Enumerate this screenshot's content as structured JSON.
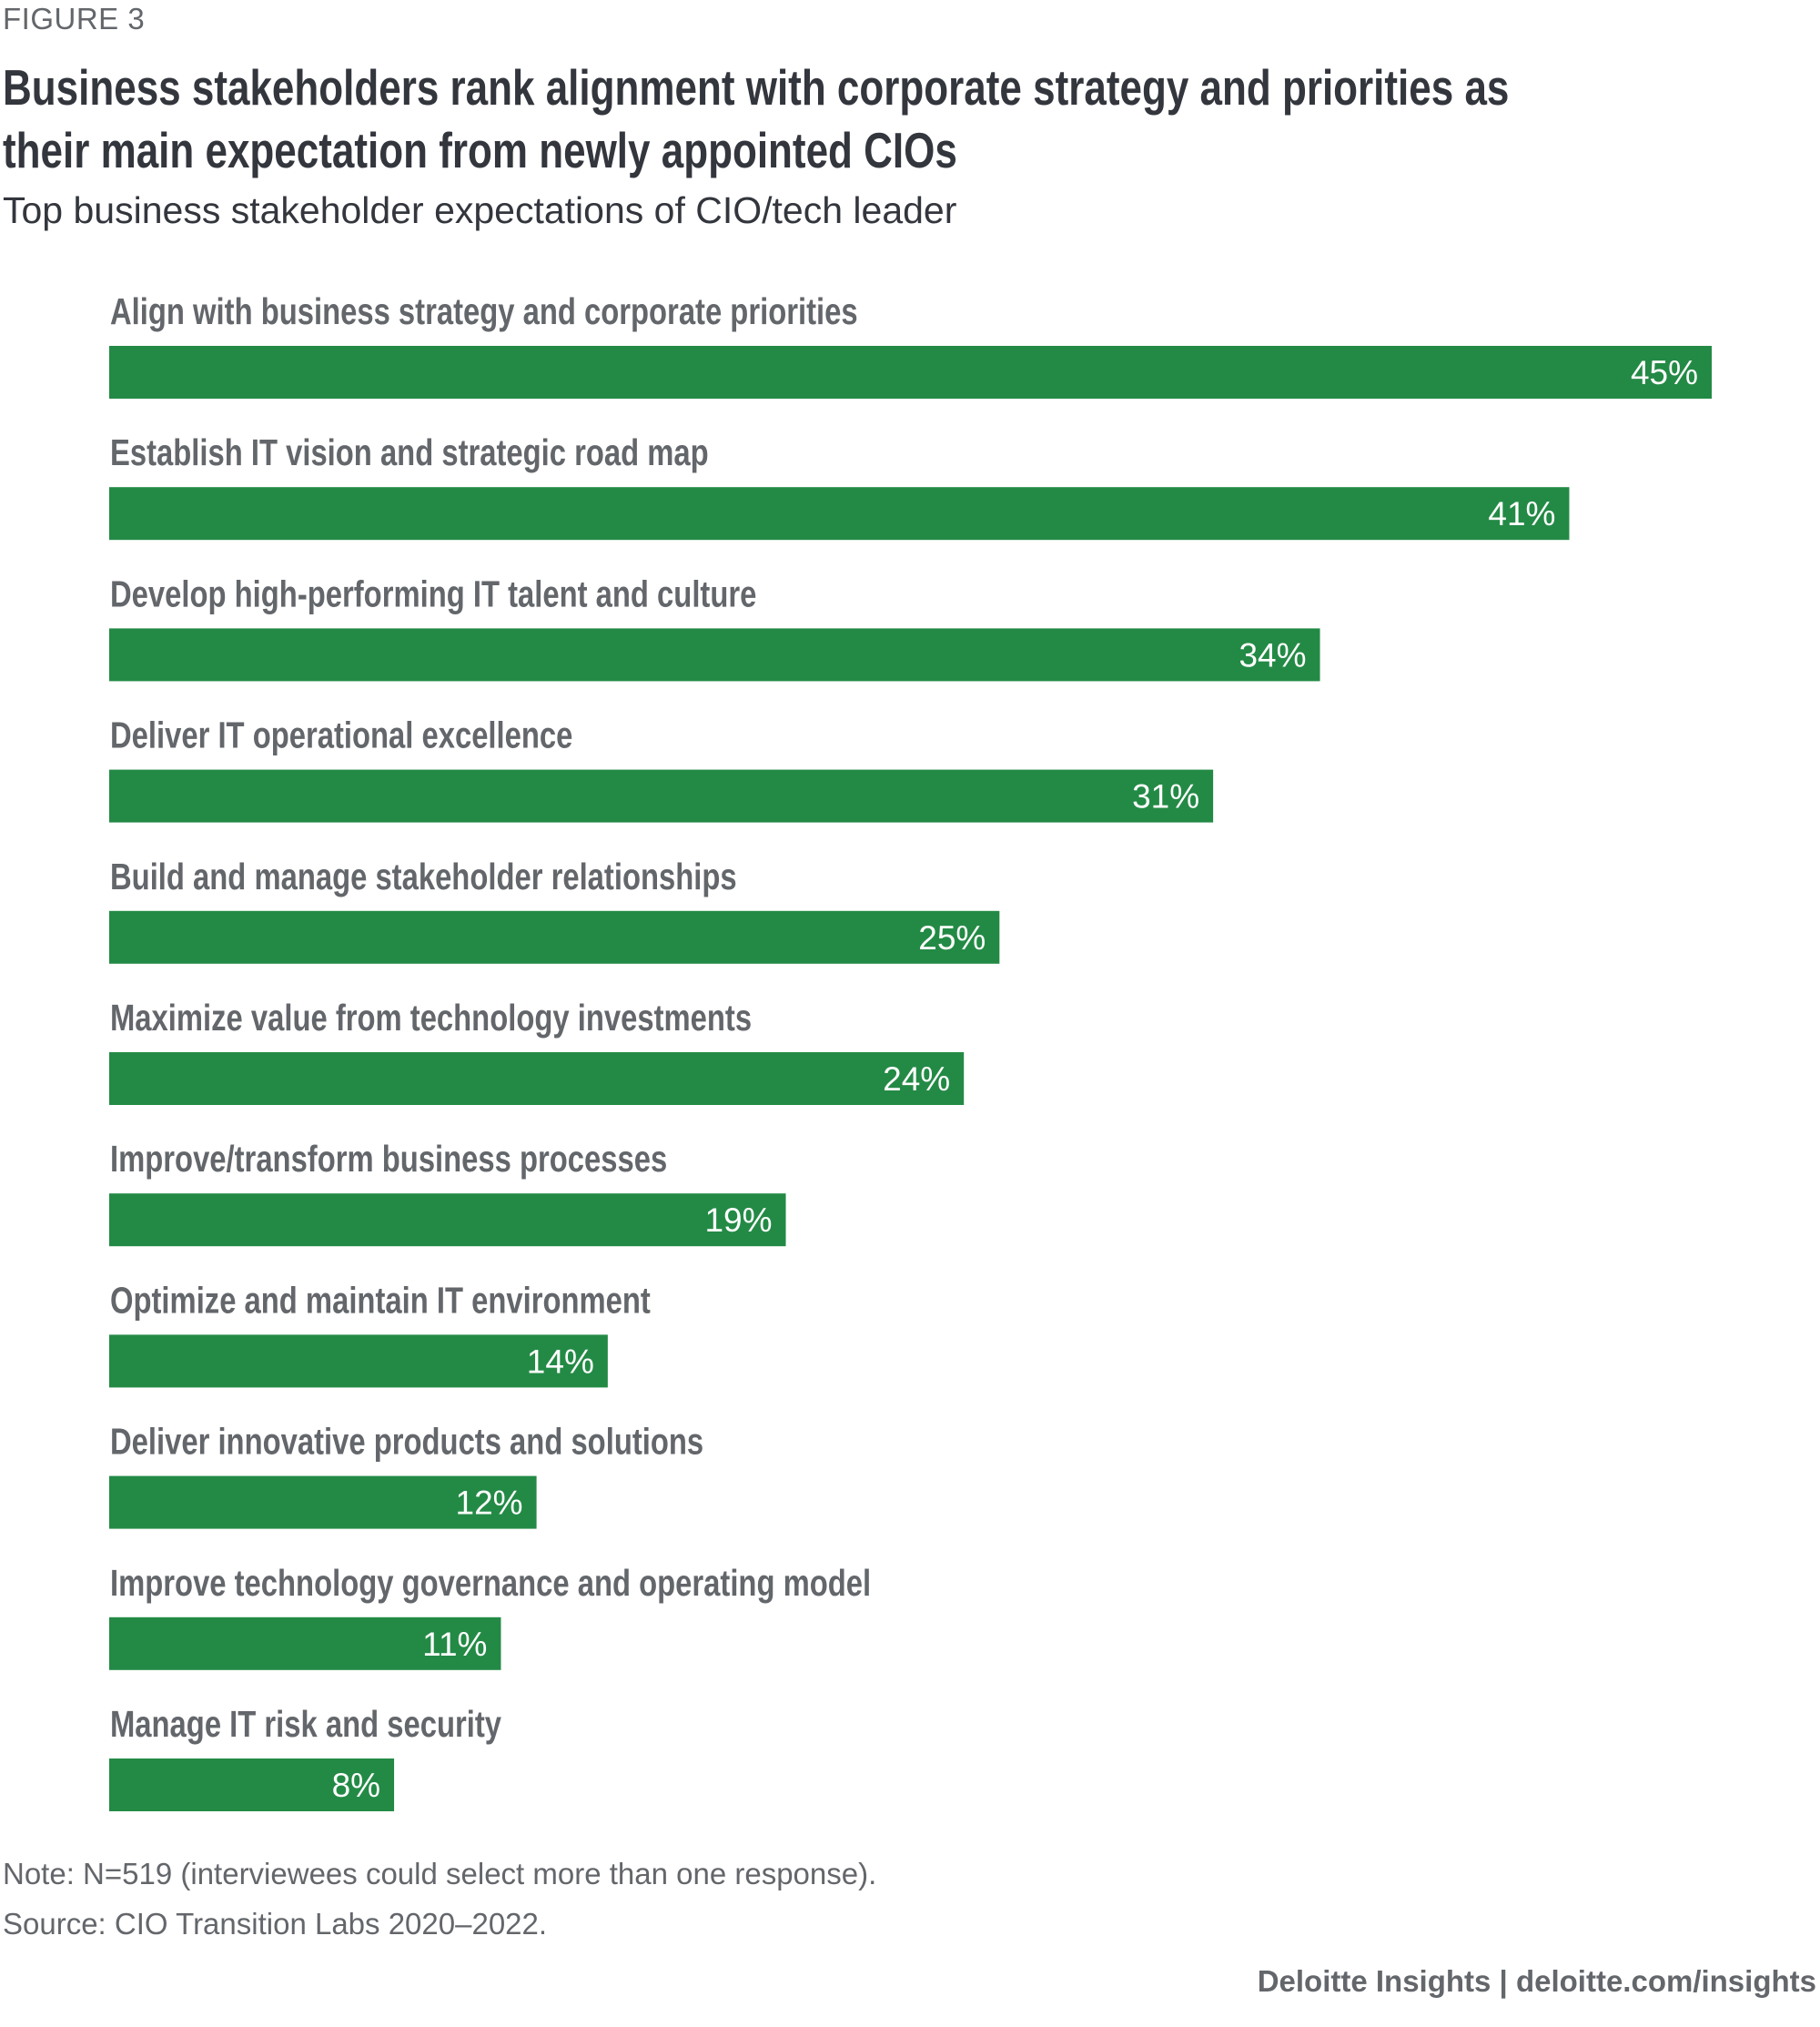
{
  "figure_label": "FIGURE 3",
  "title": "Business stakeholders rank alignment with corporate strategy and priorities as their main expectation from newly appointed CIOs",
  "title_lines": [
    "Business stakeholders rank alignment with corporate strategy and priorities as",
    "their main expectation from newly appointed CIOs"
  ],
  "subtitle": "Top business stakeholder expectations of CIO/tech leader",
  "note": "Note: N=519 (interviewees could select more than one response).",
  "source": "Source: CIO Transition Labs 2020–2022.",
  "credit": "Deloitte Insights | deloitte.com/insights",
  "colors": {
    "bar": "#238a45",
    "label": "#63666a",
    "title": "#33363d",
    "value_text": "#ffffff"
  },
  "chart_data": {
    "type": "bar",
    "orientation": "horizontal",
    "title": "Business stakeholders rank alignment with corporate strategy and priorities as their main expectation from newly appointed CIOs",
    "subtitle": "Top business stakeholder expectations of CIO/tech leader",
    "xlabel": "",
    "ylabel": "",
    "unit": "%",
    "xlim": [
      0,
      45
    ],
    "grid": false,
    "legend": "none",
    "categories": [
      "Align with business strategy and corporate priorities",
      "Establish IT vision and strategic road map",
      "Develop high-performing IT talent and culture",
      "Deliver IT operational excellence",
      "Build and manage stakeholder relationships",
      "Maximize value from technology investments",
      "Improve/transform business processes",
      "Optimize and maintain IT environment",
      "Deliver innovative products and solutions",
      "Improve technology governance and operating model",
      "Manage IT risk and security"
    ],
    "values": [
      45,
      41,
      34,
      31,
      25,
      24,
      19,
      14,
      12,
      11,
      8
    ],
    "value_labels": [
      "45%",
      "41%",
      "34%",
      "31%",
      "25%",
      "24%",
      "19%",
      "14%",
      "12%",
      "11%",
      "8%"
    ]
  }
}
